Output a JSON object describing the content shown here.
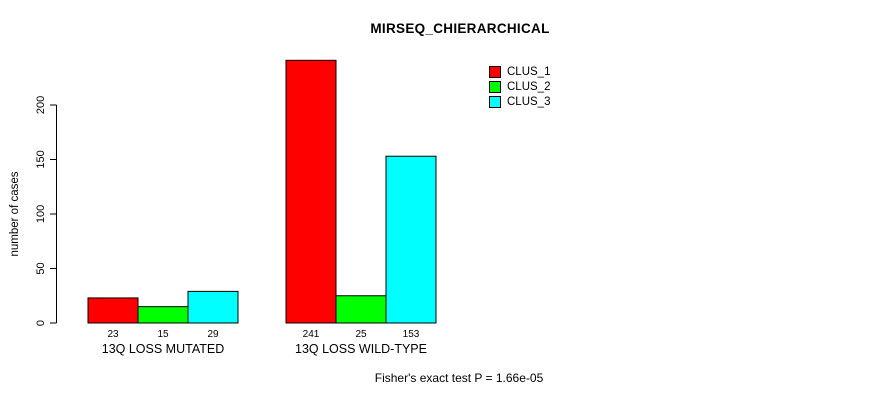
{
  "chart_data": {
    "type": "bar",
    "title": "MIRSEQ_CHIERARCHICAL",
    "ylabel": "number of cases",
    "xlabel": "",
    "categories": [
      "13Q LOSS MUTATED",
      "13Q LOSS WILD-TYPE"
    ],
    "series": [
      {
        "name": "CLUS_1",
        "color": "#ff0000",
        "values": [
          23,
          241
        ]
      },
      {
        "name": "CLUS_2",
        "color": "#00ff00",
        "values": [
          15,
          25
        ]
      },
      {
        "name": "CLUS_3",
        "color": "#00ffff",
        "values": [
          29,
          153
        ]
      }
    ],
    "yticks": [
      0,
      50,
      100,
      150,
      200
    ],
    "ylim": [
      0,
      245
    ],
    "grid": false,
    "legend_position": "top-right",
    "bar_value_labels_shown": true,
    "footnote": "Fisher's exact test P = 1.66e-05"
  }
}
